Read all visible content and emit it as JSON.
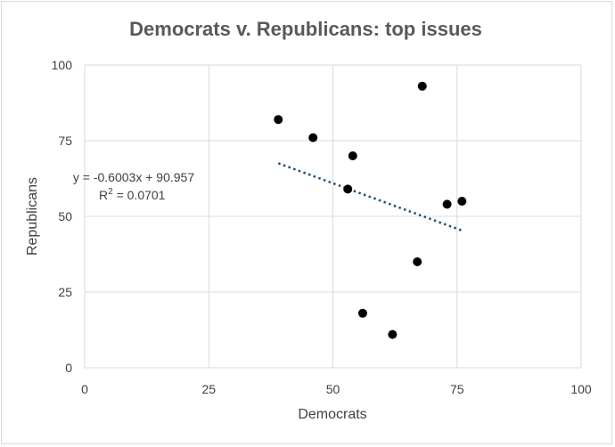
{
  "chart_data": {
    "type": "scatter",
    "title": "Democrats v. Republicans: top issues",
    "xlabel": "Democrats",
    "ylabel": "Republicans",
    "xlim": [
      0,
      100
    ],
    "ylim": [
      0,
      100
    ],
    "x_ticks": [
      "0",
      "25",
      "50",
      "75",
      "100"
    ],
    "y_ticks": [
      "0",
      "25",
      "50",
      "75",
      "100"
    ],
    "grid": true,
    "points": [
      {
        "x": 39,
        "y": 82
      },
      {
        "x": 46,
        "y": 76
      },
      {
        "x": 53,
        "y": 59
      },
      {
        "x": 54,
        "y": 70
      },
      {
        "x": 56,
        "y": 18
      },
      {
        "x": 62,
        "y": 11
      },
      {
        "x": 67,
        "y": 35
      },
      {
        "x": 68,
        "y": 93
      },
      {
        "x": 73,
        "y": 54
      },
      {
        "x": 76,
        "y": 55
      }
    ],
    "trendline": {
      "type": "linear",
      "slope": -0.6003,
      "intercept": 90.957,
      "x_range": [
        39,
        76
      ],
      "equation_label": "y = -0.6003x + 90.957",
      "r2_label_prefix": "R",
      "r2_label_suffix": " = 0.0701"
    },
    "colors": {
      "point": "#000000",
      "trendline": "#1f4e79",
      "grid": "#d9d9d9"
    }
  }
}
